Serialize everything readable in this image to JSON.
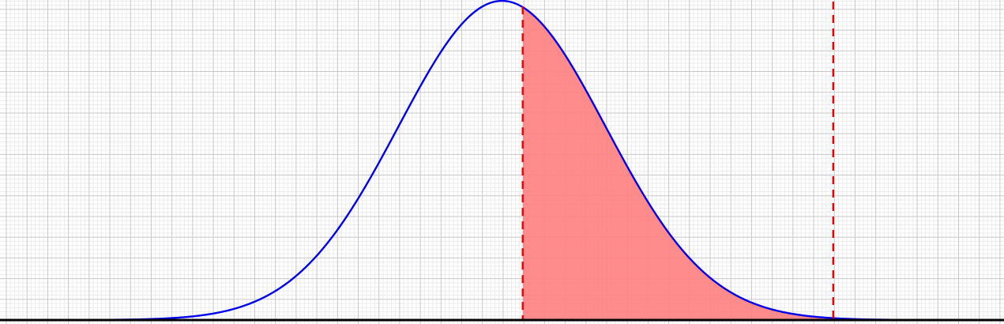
{
  "chart_data": {
    "type": "area",
    "title": "",
    "xlabel": "",
    "ylabel": "",
    "xlim": [
      -4.85,
      4.85
    ],
    "ylim": [
      0,
      0.4
    ],
    "grid": true,
    "distribution": {
      "name": "normal",
      "mean": 0,
      "sd": 1
    },
    "curve": {
      "x": [
        -4.8,
        -4.4,
        -4.0,
        -3.6,
        -3.2,
        -2.8,
        -2.4,
        -2.0,
        -1.6,
        -1.2,
        -0.8,
        -0.4,
        0.0,
        0.4,
        0.8,
        1.2,
        1.6,
        2.0,
        2.4,
        2.8,
        3.2,
        3.6,
        4.0,
        4.4,
        4.8
      ],
      "y": [
        0.0,
        0.0,
        0.0001,
        0.0006,
        0.0024,
        0.0079,
        0.0224,
        0.054,
        0.1109,
        0.1942,
        0.2897,
        0.3683,
        0.3989,
        0.3683,
        0.2897,
        0.1942,
        0.1109,
        0.054,
        0.0224,
        0.0079,
        0.0024,
        0.0006,
        0.0001,
        0.0,
        0.0
      ]
    },
    "shaded_interval": {
      "from": 0.2,
      "to": 3.2
    },
    "colors": {
      "curve": "#0000ee",
      "fill": "#ff7f7f",
      "bounds": "#ee0000",
      "axis": "#000000",
      "grid_major": "#c8c8c8",
      "grid_minor": "#ececec"
    }
  }
}
